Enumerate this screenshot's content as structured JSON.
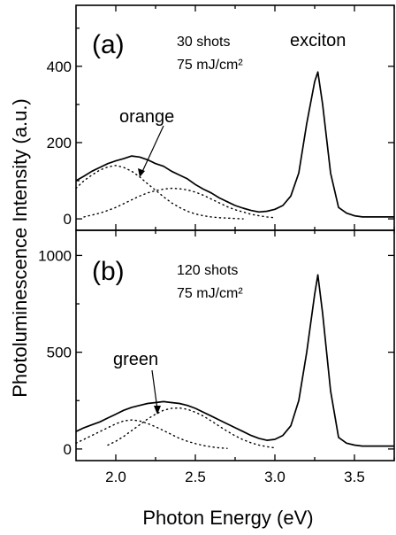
{
  "chart_data": [
    {
      "type": "line",
      "panel_label": "(a)",
      "annotations": {
        "shots": "30 shots",
        "fluence": "75 mJ/cm²",
        "peak_label": "exciton",
        "band_label": "orange"
      },
      "xlim": [
        1.75,
        3.75
      ],
      "ylim": [
        -30,
        560
      ],
      "xticks": [
        2.0,
        2.5,
        3.0,
        3.5
      ],
      "xtick_labels": [
        "2.0",
        "2.5",
        "3.0",
        "3.5"
      ],
      "yticks": [
        0,
        200,
        400
      ],
      "ytick_labels": [
        "0",
        "200",
        "400"
      ],
      "series": [
        {
          "style": "solid",
          "x": [
            1.75,
            1.8,
            1.85,
            1.9,
            1.95,
            2.0,
            2.05,
            2.1,
            2.15,
            2.2,
            2.25,
            2.3,
            2.35,
            2.4,
            2.45,
            2.5,
            2.55,
            2.6,
            2.65,
            2.7,
            2.75,
            2.8,
            2.85,
            2.9,
            2.95,
            3.0,
            3.05,
            3.1,
            3.15,
            3.2,
            3.25,
            3.27,
            3.3,
            3.35,
            3.4,
            3.45,
            3.5,
            3.55,
            3.6,
            3.65,
            3.7,
            3.75
          ],
          "y": [
            100,
            112,
            125,
            135,
            145,
            152,
            158,
            165,
            162,
            155,
            145,
            138,
            125,
            115,
            105,
            90,
            78,
            68,
            55,
            45,
            35,
            28,
            22,
            18,
            20,
            25,
            35,
            60,
            120,
            250,
            360,
            385,
            300,
            120,
            30,
            15,
            8,
            5,
            5,
            5,
            5,
            5
          ]
        },
        {
          "style": "dotted",
          "name_ref": "orange",
          "x": [
            1.75,
            1.8,
            1.85,
            1.9,
            1.95,
            2.0,
            2.05,
            2.1,
            2.15,
            2.2,
            2.25,
            2.3,
            2.35,
            2.4,
            2.45,
            2.5,
            2.55,
            2.6,
            2.65,
            2.7,
            2.75,
            2.8
          ],
          "y": [
            80,
            100,
            115,
            128,
            136,
            140,
            135,
            125,
            110,
            92,
            75,
            58,
            42,
            30,
            20,
            13,
            8,
            5,
            3,
            2,
            1,
            0
          ]
        },
        {
          "style": "dotted",
          "x": [
            1.8,
            1.85,
            1.9,
            1.95,
            2.0,
            2.05,
            2.1,
            2.15,
            2.2,
            2.25,
            2.3,
            2.35,
            2.4,
            2.45,
            2.5,
            2.55,
            2.6,
            2.65,
            2.7,
            2.75,
            2.8,
            2.85,
            2.9,
            2.95,
            3.0
          ],
          "y": [
            5,
            10,
            15,
            22,
            30,
            40,
            50,
            60,
            68,
            74,
            78,
            80,
            79,
            76,
            70,
            62,
            52,
            42,
            32,
            24,
            18,
            12,
            8,
            5,
            3
          ]
        }
      ]
    },
    {
      "type": "line",
      "panel_label": "(b)",
      "annotations": {
        "shots": "120 shots",
        "fluence": "75 mJ/cm²",
        "band_label": "green"
      },
      "xlim": [
        1.75,
        3.75
      ],
      "ylim": [
        -60,
        1130
      ],
      "xticks": [
        2.0,
        2.5,
        3.0,
        3.5
      ],
      "xtick_labels": [
        "2.0",
        "2.5",
        "3.0",
        "3.5"
      ],
      "yticks": [
        0,
        500,
        1000
      ],
      "ytick_labels": [
        "0",
        "500",
        "1000"
      ],
      "series": [
        {
          "style": "solid",
          "x": [
            1.75,
            1.8,
            1.85,
            1.9,
            1.95,
            2.0,
            2.05,
            2.1,
            2.15,
            2.2,
            2.25,
            2.3,
            2.35,
            2.4,
            2.45,
            2.5,
            2.55,
            2.6,
            2.65,
            2.7,
            2.75,
            2.8,
            2.85,
            2.9,
            2.95,
            3.0,
            3.05,
            3.1,
            3.15,
            3.2,
            3.25,
            3.27,
            3.3,
            3.35,
            3.4,
            3.45,
            3.5,
            3.55,
            3.6,
            3.65,
            3.7,
            3.75
          ],
          "y": [
            90,
            110,
            125,
            140,
            160,
            180,
            200,
            215,
            225,
            235,
            240,
            245,
            240,
            235,
            225,
            210,
            190,
            170,
            150,
            130,
            110,
            90,
            70,
            55,
            45,
            50,
            70,
            120,
            250,
            500,
            800,
            900,
            700,
            300,
            60,
            30,
            20,
            15,
            15,
            15,
            15,
            15
          ]
        },
        {
          "style": "dotted",
          "name_ref": "green",
          "x": [
            1.75,
            1.8,
            1.85,
            1.9,
            1.95,
            2.0,
            2.05,
            2.1,
            2.15,
            2.2,
            2.25,
            2.3,
            2.35,
            2.4,
            2.45,
            2.5,
            2.55,
            2.6,
            2.65,
            2.7
          ],
          "y": [
            30,
            50,
            70,
            90,
            110,
            130,
            145,
            150,
            145,
            132,
            115,
            95,
            75,
            55,
            40,
            28,
            18,
            11,
            6,
            3
          ]
        },
        {
          "style": "dotted",
          "x": [
            1.95,
            2.0,
            2.05,
            2.1,
            2.15,
            2.2,
            2.25,
            2.3,
            2.35,
            2.4,
            2.45,
            2.5,
            2.55,
            2.6,
            2.65,
            2.7,
            2.75,
            2.8,
            2.85,
            2.9,
            2.95,
            3.0
          ],
          "y": [
            20,
            40,
            65,
            95,
            125,
            155,
            180,
            200,
            210,
            212,
            205,
            190,
            170,
            145,
            118,
            92,
            68,
            48,
            32,
            20,
            12,
            6
          ]
        }
      ]
    }
  ],
  "axes": {
    "xlabel": "Photon Energy (eV)",
    "ylabel": "Photoluminescence Intensity (a.u.)"
  }
}
